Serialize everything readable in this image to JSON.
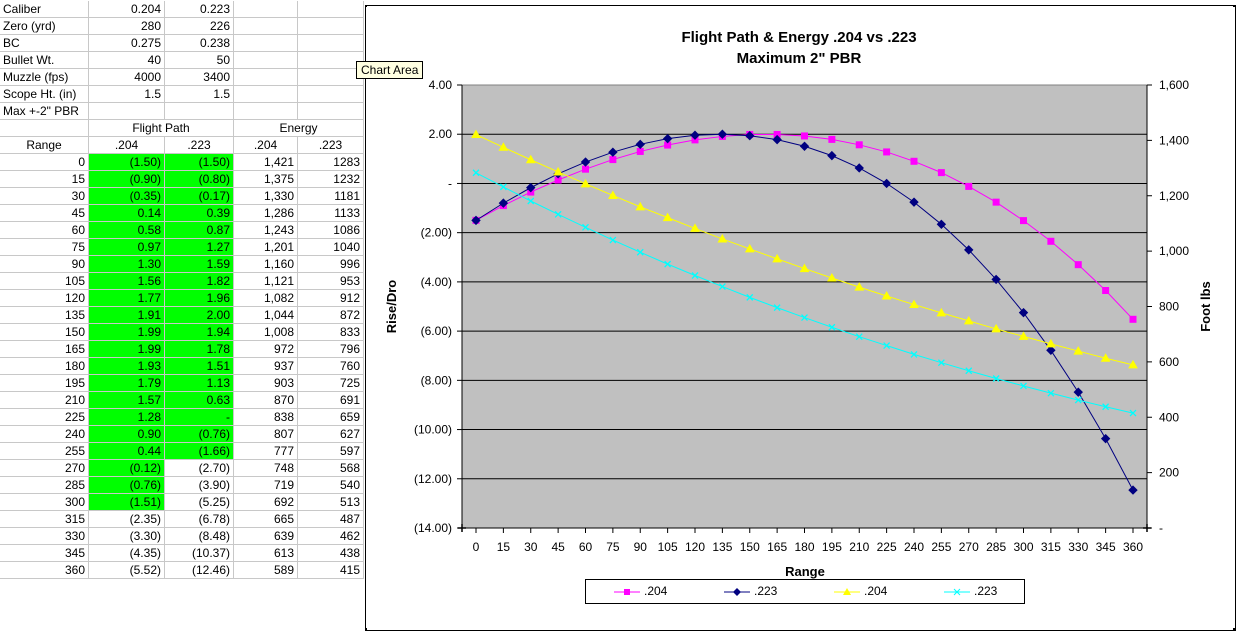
{
  "spreadsheet": {
    "params": [
      {
        "label": "Caliber",
        "v204": "0.204",
        "v223": "0.223"
      },
      {
        "label": "Zero (yrd)",
        "v204": "280",
        "v223": "226"
      },
      {
        "label": "BC",
        "v204": "0.275",
        "v223": "0.238"
      },
      {
        "label": "Bullet Wt.",
        "v204": "40",
        "v223": "50"
      },
      {
        "label": "Muzzle (fps)",
        "v204": "4000",
        "v223": "3400"
      },
      {
        "label": "Scope Ht. (in)",
        "v204": "1.5",
        "v223": "1.5"
      }
    ],
    "note": "Max +-2\" PBR",
    "group_headers": {
      "flight_path": "Flight Path",
      "energy": "Energy"
    },
    "col_headers": {
      "range": "Range",
      "fp204": ".204",
      "fp223": ".223",
      "en204": ".204",
      "en223": ".223"
    },
    "rows": [
      {
        "range": "0",
        "fp204": "(1.50)",
        "fp223": "(1.50)",
        "en204": "1,421",
        "en223": "1283",
        "g204": true,
        "g223": true
      },
      {
        "range": "15",
        "fp204": "(0.90)",
        "fp223": "(0.80)",
        "en204": "1,375",
        "en223": "1232",
        "g204": true,
        "g223": true
      },
      {
        "range": "30",
        "fp204": "(0.35)",
        "fp223": "(0.17)",
        "en204": "1,330",
        "en223": "1181",
        "g204": true,
        "g223": true
      },
      {
        "range": "45",
        "fp204": "0.14",
        "fp223": "0.39",
        "en204": "1,286",
        "en223": "1133",
        "g204": true,
        "g223": true
      },
      {
        "range": "60",
        "fp204": "0.58",
        "fp223": "0.87",
        "en204": "1,243",
        "en223": "1086",
        "g204": true,
        "g223": true
      },
      {
        "range": "75",
        "fp204": "0.97",
        "fp223": "1.27",
        "en204": "1,201",
        "en223": "1040",
        "g204": true,
        "g223": true
      },
      {
        "range": "90",
        "fp204": "1.30",
        "fp223": "1.59",
        "en204": "1,160",
        "en223": "996",
        "g204": true,
        "g223": true
      },
      {
        "range": "105",
        "fp204": "1.56",
        "fp223": "1.82",
        "en204": "1,121",
        "en223": "953",
        "g204": true,
        "g223": true
      },
      {
        "range": "120",
        "fp204": "1.77",
        "fp223": "1.96",
        "en204": "1,082",
        "en223": "912",
        "g204": true,
        "g223": true
      },
      {
        "range": "135",
        "fp204": "1.91",
        "fp223": "2.00",
        "en204": "1,044",
        "en223": "872",
        "g204": true,
        "g223": true
      },
      {
        "range": "150",
        "fp204": "1.99",
        "fp223": "1.94",
        "en204": "1,008",
        "en223": "833",
        "g204": true,
        "g223": true
      },
      {
        "range": "165",
        "fp204": "1.99",
        "fp223": "1.78",
        "en204": "972",
        "en223": "796",
        "g204": true,
        "g223": true
      },
      {
        "range": "180",
        "fp204": "1.93",
        "fp223": "1.51",
        "en204": "937",
        "en223": "760",
        "g204": true,
        "g223": true
      },
      {
        "range": "195",
        "fp204": "1.79",
        "fp223": "1.13",
        "en204": "903",
        "en223": "725",
        "g204": true,
        "g223": true
      },
      {
        "range": "210",
        "fp204": "1.57",
        "fp223": "0.63",
        "en204": "870",
        "en223": "691",
        "g204": true,
        "g223": true
      },
      {
        "range": "225",
        "fp204": "1.28",
        "fp223": "-",
        "en204": "838",
        "en223": "659",
        "g204": true,
        "g223": true
      },
      {
        "range": "240",
        "fp204": "0.90",
        "fp223": "(0.76)",
        "en204": "807",
        "en223": "627",
        "g204": true,
        "g223": true
      },
      {
        "range": "255",
        "fp204": "0.44",
        "fp223": "(1.66)",
        "en204": "777",
        "en223": "597",
        "g204": true,
        "g223": true
      },
      {
        "range": "270",
        "fp204": "(0.12)",
        "fp223": "(2.70)",
        "en204": "748",
        "en223": "568",
        "g204": true,
        "g223": false
      },
      {
        "range": "285",
        "fp204": "(0.76)",
        "fp223": "(3.90)",
        "en204": "719",
        "en223": "540",
        "g204": true,
        "g223": false
      },
      {
        "range": "300",
        "fp204": "(1.51)",
        "fp223": "(5.25)",
        "en204": "692",
        "en223": "513",
        "g204": true,
        "g223": false
      },
      {
        "range": "315",
        "fp204": "(2.35)",
        "fp223": "(6.78)",
        "en204": "665",
        "en223": "487",
        "g204": false,
        "g223": false
      },
      {
        "range": "330",
        "fp204": "(3.30)",
        "fp223": "(8.48)",
        "en204": "639",
        "en223": "462",
        "g204": false,
        "g223": false
      },
      {
        "range": "345",
        "fp204": "(4.35)",
        "fp223": "(10.37)",
        "en204": "613",
        "en223": "438",
        "g204": false,
        "g223": false
      },
      {
        "range": "360",
        "fp204": "(5.52)",
        "fp223": "(12.46)",
        "en204": "589",
        "en223": "415",
        "g204": false,
        "g223": false
      }
    ]
  },
  "tooltip": "Chart Area",
  "colors": {
    "grid_bg": "#c0c0c0",
    "highlight": "#00ff00",
    "s1": "#ff00ff",
    "s2": "#000080",
    "s3": "#ffff00",
    "s4": "#00ffff"
  },
  "chart_data": {
    "type": "line",
    "title": "Flight Path & Energy .204 vs .223",
    "subtitle": "Maximum 2\" PBR",
    "xlabel": "Range",
    "ylabel": "Rise/Dro",
    "y2label": "Foot lbs",
    "x": [
      0,
      15,
      30,
      45,
      60,
      75,
      90,
      105,
      120,
      135,
      150,
      165,
      180,
      195,
      210,
      225,
      240,
      255,
      270,
      285,
      300,
      315,
      330,
      345,
      360
    ],
    "ylim": [
      -14,
      4
    ],
    "y2lim": [
      0,
      1600
    ],
    "yticks": [
      "4.00",
      "2.00",
      "-",
      "(2.00)",
      "(4.00)",
      "(6.00)",
      "(8.00)",
      "(10.00)",
      "(12.00)",
      "(14.00)"
    ],
    "y2ticks": [
      "1,600",
      "1,400",
      "1,200",
      "1,000",
      "800",
      "600",
      "400",
      "200",
      "-"
    ],
    "series": [
      {
        "name": ".204",
        "axis": "left",
        "marker": "square",
        "values": [
          -1.5,
          -0.9,
          -0.35,
          0.14,
          0.58,
          0.97,
          1.3,
          1.56,
          1.77,
          1.91,
          1.99,
          1.99,
          1.93,
          1.79,
          1.57,
          1.28,
          0.9,
          0.44,
          -0.12,
          -0.76,
          -1.51,
          -2.35,
          -3.3,
          -4.35,
          -5.52
        ]
      },
      {
        "name": ".223",
        "axis": "left",
        "marker": "diamond",
        "values": [
          -1.5,
          -0.8,
          -0.17,
          0.39,
          0.87,
          1.27,
          1.59,
          1.82,
          1.96,
          2.0,
          1.94,
          1.78,
          1.51,
          1.13,
          0.63,
          0,
          -0.76,
          -1.66,
          -2.7,
          -3.9,
          -5.25,
          -6.78,
          -8.48,
          -10.37,
          -12.46
        ]
      },
      {
        "name": ".204",
        "axis": "right",
        "marker": "triangle",
        "values": [
          1421,
          1375,
          1330,
          1286,
          1243,
          1201,
          1160,
          1121,
          1082,
          1044,
          1008,
          972,
          937,
          903,
          870,
          838,
          807,
          777,
          748,
          719,
          692,
          665,
          639,
          613,
          589
        ]
      },
      {
        "name": ".223",
        "axis": "right",
        "marker": "x",
        "values": [
          1283,
          1232,
          1181,
          1133,
          1086,
          1040,
          996,
          953,
          912,
          872,
          833,
          796,
          760,
          725,
          691,
          659,
          627,
          597,
          568,
          540,
          513,
          487,
          462,
          438,
          415
        ]
      }
    ],
    "grid": true,
    "legend": "bottom"
  }
}
